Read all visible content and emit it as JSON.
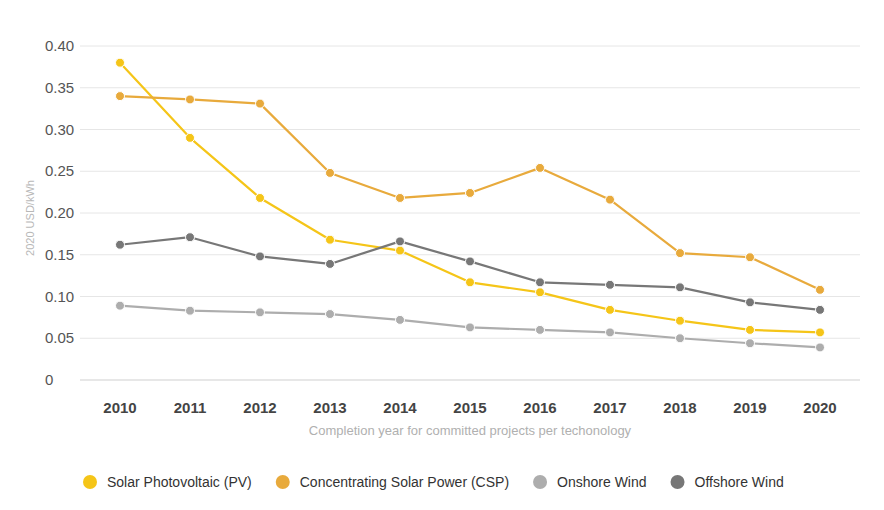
{
  "chart_data": {
    "type": "line",
    "y_label": "2020 USD/kWh",
    "x_label": "Completion year for committed projects per techonology",
    "categories": [
      "2010",
      "2011",
      "2012",
      "2013",
      "2014",
      "2015",
      "2016",
      "2017",
      "2018",
      "2019",
      "2020"
    ],
    "series": [
      {
        "name": "Solar Photovoltaic (PV)",
        "color": "#f5c518",
        "marker": "circle",
        "line_style": "solid",
        "values": [
          0.38,
          0.29,
          0.218,
          0.168,
          0.155,
          0.117,
          0.105,
          0.084,
          0.071,
          0.06,
          0.057
        ]
      },
      {
        "name": "Concentrating Solar Power (CSP)",
        "color": "#e8aa3c",
        "marker": "circle",
        "line_style": "solid",
        "values": [
          0.34,
          0.336,
          0.331,
          0.248,
          0.218,
          0.224,
          0.254,
          0.216,
          0.152,
          0.147,
          0.108
        ]
      },
      {
        "name": "Onshore Wind",
        "color": "#adadad",
        "marker": "circle",
        "line_style": "solid",
        "values": [
          0.089,
          0.083,
          0.081,
          0.079,
          0.072,
          0.063,
          0.06,
          0.057,
          0.05,
          0.044,
          0.039
        ]
      },
      {
        "name": "Offshore Wind",
        "color": "#777777",
        "marker": "circle",
        "line_style": "solid",
        "values": [
          0.162,
          0.171,
          0.148,
          0.139,
          0.166,
          0.142,
          0.117,
          0.114,
          0.111,
          0.093,
          0.084
        ]
      }
    ],
    "ylim": [
      0,
      0.4
    ],
    "yticks": [
      0,
      0.05,
      {
        "value": 0.1,
        "label": "0.10"
      },
      0.15,
      {
        "value": 0.2,
        "label": "0.20"
      },
      0.25,
      {
        "value": 0.3,
        "label": "0.30"
      },
      0.35,
      {
        "value": 0.4,
        "label": "0.40"
      }
    ],
    "grid": true,
    "legend": "bottom"
  }
}
